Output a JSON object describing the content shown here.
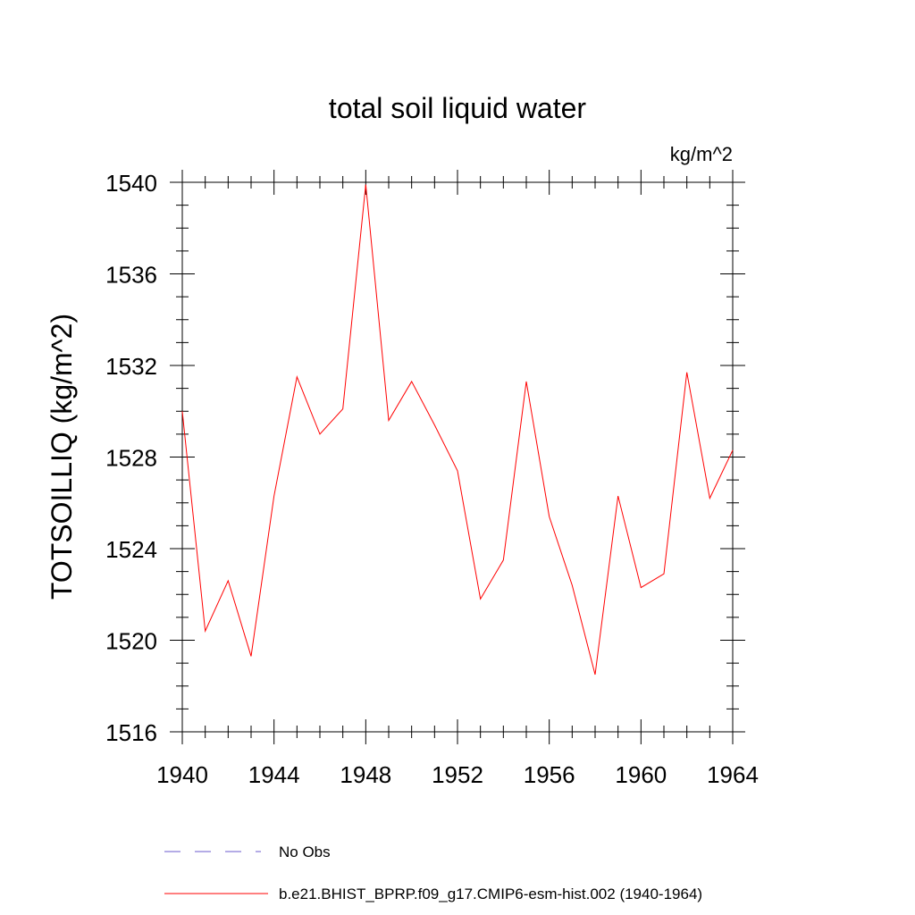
{
  "chart_data": {
    "type": "line",
    "title": "total soil liquid water",
    "units": "kg/m^2",
    "ylabel": "TOTSOILLIQ  (kg/m^2)",
    "xlabel": "",
    "xlim": [
      1940,
      1964
    ],
    "ylim": [
      1516,
      1540
    ],
    "xticks": [
      1940,
      1944,
      1948,
      1952,
      1956,
      1960,
      1964
    ],
    "yticks": [
      1516,
      1520,
      1524,
      1528,
      1532,
      1536,
      1540
    ],
    "xtick_labels": [
      "1940",
      "1944",
      "1948",
      "1952",
      "1956",
      "1960",
      "1964"
    ],
    "ytick_labels": [
      "1516",
      "1520",
      "1524",
      "1528",
      "1532",
      "1536",
      "1540"
    ],
    "series": [
      {
        "name": "b.e21.BHIST_BPRP.f09_g17.CMIP6-esm-hist.002 (1940-1964)",
        "color": "#ff0000",
        "style": "solid",
        "x": [
          1940,
          1941,
          1942,
          1943,
          1944,
          1945,
          1946,
          1947,
          1948,
          1949,
          1950,
          1951,
          1952,
          1953,
          1954,
          1955,
          1956,
          1957,
          1958,
          1959,
          1960,
          1961,
          1962,
          1963,
          1964
        ],
        "y": [
          1530.0,
          1520.4,
          1522.6,
          1519.3,
          1526.3,
          1531.5,
          1529.0,
          1530.1,
          1539.9,
          1529.6,
          1531.3,
          1529.4,
          1527.4,
          1521.8,
          1523.5,
          1531.3,
          1525.4,
          1522.4,
          1518.5,
          1526.3,
          1522.3,
          1522.9,
          1531.7,
          1526.2,
          1528.3
        ]
      }
    ],
    "legend": [
      {
        "label": "No Obs",
        "color": "#6a5acd",
        "style": "dashed"
      },
      {
        "label": "b.e21.BHIST_BPRP.f09_g17.CMIP6-esm-hist.002 (1940-1964)",
        "color": "#ff0000",
        "style": "solid"
      }
    ],
    "legend_position": "bottom"
  }
}
